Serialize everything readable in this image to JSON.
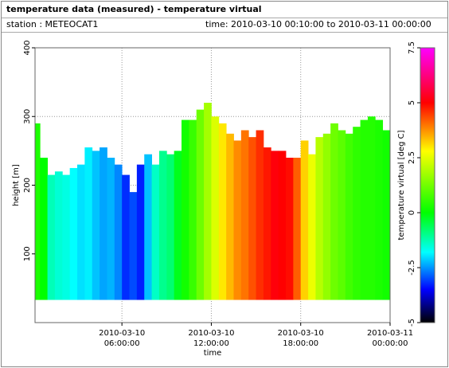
{
  "header": {
    "title": "temperature data (measured) - temperature virtual",
    "station": "station : METEOCAT1",
    "time": "time: 2010-03-10 00:10:00 to 2010-03-11 00:00:00"
  },
  "chart_data": {
    "type": "heatmap-columns",
    "xlabel": "time",
    "ylabel": "height [m]",
    "colorbar_label": "temperature virtual [deg C]",
    "xlim": [
      0.1667,
      24
    ],
    "xticks": [
      {
        "value": 6,
        "label": "2010-03-10 06:00:00"
      },
      {
        "value": 12,
        "label": "2010-03-10 12:00:00"
      },
      {
        "value": 18,
        "label": "2010-03-10 18:00:00"
      },
      {
        "value": 24,
        "label": "2010-03-11 00:00:00"
      }
    ],
    "ylim": [
      0,
      400
    ],
    "yticks": [
      100,
      200,
      300,
      400
    ],
    "clim": [
      -5,
      7.5
    ],
    "cticks": [
      -5,
      -2.5,
      0,
      2.5,
      5,
      7.5
    ],
    "colormap": [
      {
        "value": -5,
        "color": "#000000"
      },
      {
        "value": -3.5,
        "color": "#0000ff"
      },
      {
        "value": -1.8,
        "color": "#00ffff"
      },
      {
        "value": 0,
        "color": "#00ff00"
      },
      {
        "value": 2.8,
        "color": "#ffff00"
      },
      {
        "value": 5,
        "color": "#ff0000"
      },
      {
        "value": 7.5,
        "color": "#ff00ff"
      }
    ],
    "grid": true,
    "base_height": 33,
    "x": [
      0.5,
      1,
      1.5,
      2,
      2.5,
      3,
      3.5,
      4,
      4.5,
      5,
      5.5,
      6,
      6.5,
      7,
      7.5,
      8,
      8.5,
      9,
      9.5,
      10,
      10.5,
      11,
      11.5,
      12,
      12.5,
      13,
      13.5,
      14,
      14.5,
      15,
      15.5,
      16,
      16.5,
      17,
      17.5,
      18,
      18.5,
      19,
      19.5,
      20,
      20.5,
      21,
      21.5,
      22,
      22.5,
      23,
      23.5,
      24
    ],
    "heights": [
      290,
      240,
      215,
      220,
      215,
      225,
      230,
      255,
      250,
      255,
      240,
      230,
      215,
      190,
      230,
      245,
      230,
      250,
      245,
      250,
      295,
      295,
      310,
      320,
      300,
      290,
      275,
      265,
      280,
      270,
      280,
      255,
      250,
      250,
      240,
      240,
      265,
      245,
      270,
      275,
      290,
      280,
      275,
      285,
      295,
      300,
      295,
      280
    ],
    "values": [
      0.3,
      0.0,
      -1.3,
      -1.5,
      -1.6,
      -1.8,
      -2.0,
      -1.9,
      -2.2,
      -2.4,
      -2.3,
      -2.6,
      -3.2,
      -3.0,
      -3.3,
      -2.2,
      -1.4,
      -1.0,
      -0.8,
      -0.2,
      0.2,
      0.6,
      1.2,
      1.8,
      2.4,
      3.0,
      3.4,
      3.8,
      4.0,
      4.3,
      4.6,
      4.8,
      5.1,
      5.0,
      4.9,
      4.2,
      3.2,
      2.6,
      2.0,
      1.6,
      1.2,
      1.0,
      0.7,
      0.5,
      0.4,
      0.4,
      0.3,
      0.2
    ]
  }
}
